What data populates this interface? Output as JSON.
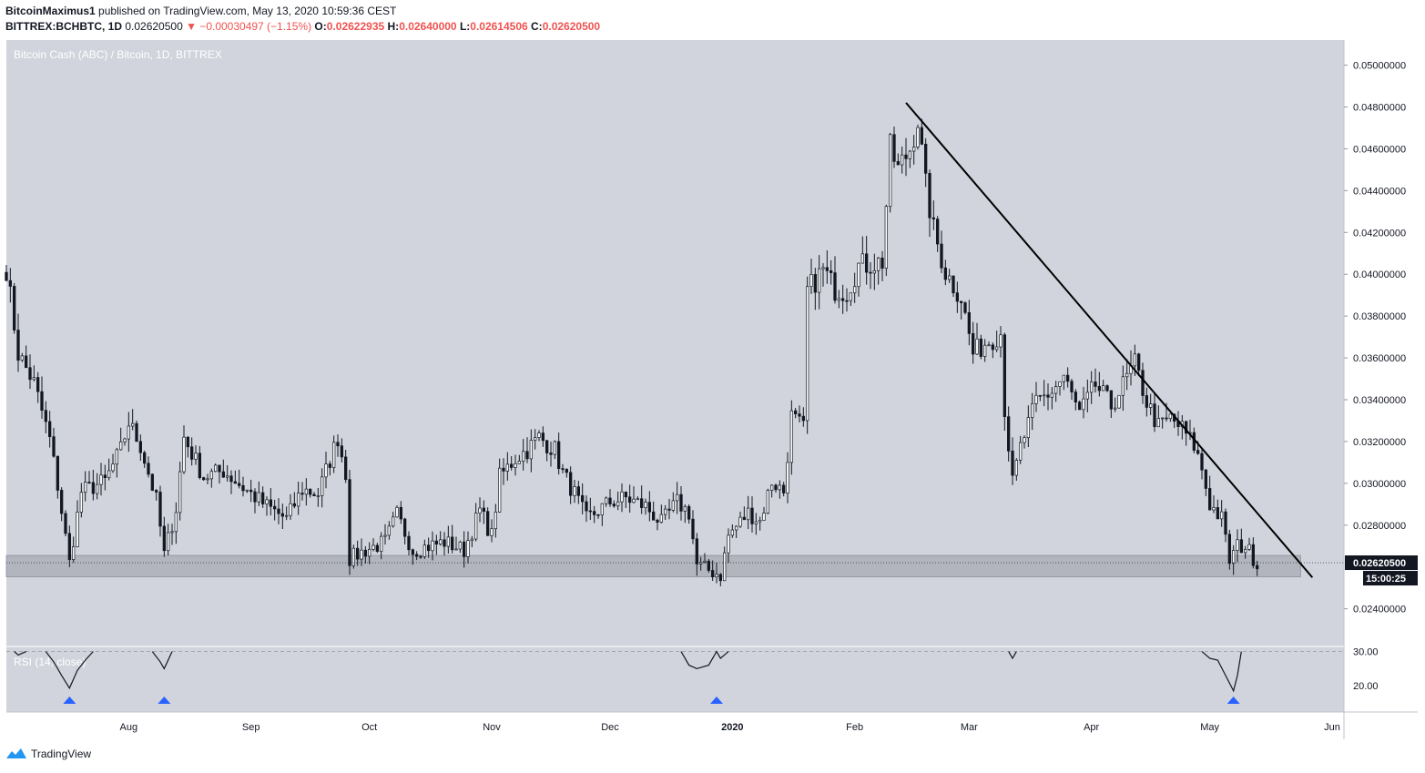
{
  "header": {
    "author": "BitcoinMaximus1",
    "published": "published on TradingView.com, May 13, 2020 10:59:36 CEST",
    "symbol": "BITTREX:BCHBTC, 1D",
    "last": "0.02620500",
    "change": "▼ −0.00030497 (−1.15%)",
    "o_label": "O:",
    "o": "0.02622935",
    "h_label": "H:",
    "h": "0.02640000",
    "l_label": "L:",
    "l": "0.02614506",
    "c_label": "C:",
    "c": "0.02620500"
  },
  "footer": {
    "brand": "TradingView"
  },
  "colors": {
    "background": "#d1d4dc",
    "text": "#131722",
    "down": "#ef5350",
    "marker": "#2962ff",
    "zone": "#b2b5be"
  },
  "chart_data": [
    {
      "type": "candlestick",
      "title": "Bitcoin Cash (ABC) / Bitcoin, 1D, BITTREX",
      "x_tick_labels": [
        "Aug",
        "Sep",
        "Oct",
        "Nov",
        "Dec",
        "2020",
        "Feb",
        "Mar",
        "Apr",
        "May",
        "Jun"
      ],
      "x_tick_dates": [
        "2019-08-01",
        "2019-09-01",
        "2019-10-01",
        "2019-11-01",
        "2019-12-01",
        "2020-01-01",
        "2020-02-01",
        "2020-03-01",
        "2020-04-01",
        "2020-05-01",
        "2020-06-01"
      ],
      "y_tick_labels": [
        "0.02400000",
        "0.02800000",
        "0.03000000",
        "0.03200000",
        "0.03400000",
        "0.03600000",
        "0.03800000",
        "0.04000000",
        "0.04200000",
        "0.04400000",
        "0.04600000",
        "0.04800000",
        "0.05000000"
      ],
      "y_range": [
        0.0222,
        0.0512
      ],
      "x_range": [
        "2019-07-01",
        "2020-06-04"
      ],
      "last_price_label": "0.02620500",
      "countdown_label": "15:00:25",
      "support_zone": {
        "from": "2019-07-01",
        "to": "2020-05-24",
        "low": 0.02553,
        "high": 0.02655
      },
      "trendline": [
        {
          "date": "2020-02-14",
          "price": 0.0482
        },
        {
          "date": "2020-05-27",
          "price": 0.0255
        }
      ],
      "anchors": [
        {
          "date": "2019-07-01",
          "price": 0.0403
        },
        {
          "date": "2019-07-04",
          "price": 0.0362
        },
        {
          "date": "2019-07-08",
          "price": 0.0348
        },
        {
          "date": "2019-07-12",
          "price": 0.0321
        },
        {
          "date": "2019-07-14",
          "price": 0.0299
        },
        {
          "date": "2019-07-17",
          "price": 0.0262
        },
        {
          "date": "2019-07-20",
          "price": 0.0296
        },
        {
          "date": "2019-07-26",
          "price": 0.0301
        },
        {
          "date": "2019-07-30",
          "price": 0.0316
        },
        {
          "date": "2019-08-01",
          "price": 0.0329
        },
        {
          "date": "2019-08-04",
          "price": 0.0318
        },
        {
          "date": "2019-08-08",
          "price": 0.0292
        },
        {
          "date": "2019-08-10",
          "price": 0.0266
        },
        {
          "date": "2019-08-13",
          "price": 0.0288
        },
        {
          "date": "2019-08-15",
          "price": 0.0322
        },
        {
          "date": "2019-08-20",
          "price": 0.0303
        },
        {
          "date": "2019-08-25",
          "price": 0.0306
        },
        {
          "date": "2019-08-30",
          "price": 0.0298
        },
        {
          "date": "2019-09-05",
          "price": 0.0289
        },
        {
          "date": "2019-09-10",
          "price": 0.0283
        },
        {
          "date": "2019-09-14",
          "price": 0.0297
        },
        {
          "date": "2019-09-18",
          "price": 0.0295
        },
        {
          "date": "2019-09-23",
          "price": 0.0322
        },
        {
          "date": "2019-09-25",
          "price": 0.0305
        },
        {
          "date": "2019-09-26",
          "price": 0.0264
        },
        {
          "date": "2019-09-30",
          "price": 0.0268
        },
        {
          "date": "2019-10-05",
          "price": 0.0272
        },
        {
          "date": "2019-10-08",
          "price": 0.0285
        },
        {
          "date": "2019-10-12",
          "price": 0.0268
        },
        {
          "date": "2019-10-20",
          "price": 0.0272
        },
        {
          "date": "2019-10-25",
          "price": 0.0268
        },
        {
          "date": "2019-10-29",
          "price": 0.0287
        },
        {
          "date": "2019-11-01",
          "price": 0.0275
        },
        {
          "date": "2019-11-03",
          "price": 0.0303
        },
        {
          "date": "2019-11-07",
          "price": 0.0312
        },
        {
          "date": "2019-11-10",
          "price": 0.0316
        },
        {
          "date": "2019-11-13",
          "price": 0.0322
        },
        {
          "date": "2019-11-17",
          "price": 0.0316
        },
        {
          "date": "2019-11-19",
          "price": 0.0305
        },
        {
          "date": "2019-11-22",
          "price": 0.0295
        },
        {
          "date": "2019-11-25",
          "price": 0.0283
        },
        {
          "date": "2019-12-01",
          "price": 0.0291
        },
        {
          "date": "2019-12-05",
          "price": 0.0293
        },
        {
          "date": "2019-12-10",
          "price": 0.0289
        },
        {
          "date": "2019-12-14",
          "price": 0.0281
        },
        {
          "date": "2019-12-18",
          "price": 0.0291
        },
        {
          "date": "2019-12-21",
          "price": 0.0286
        },
        {
          "date": "2019-12-23",
          "price": 0.0261
        },
        {
          "date": "2019-12-29",
          "price": 0.0256
        },
        {
          "date": "2019-12-31",
          "price": 0.0275
        },
        {
          "date": "2020-01-05",
          "price": 0.0286
        },
        {
          "date": "2020-01-08",
          "price": 0.0282
        },
        {
          "date": "2020-01-11",
          "price": 0.0301
        },
        {
          "date": "2020-01-14",
          "price": 0.0296
        },
        {
          "date": "2020-01-16",
          "price": 0.0332
        },
        {
          "date": "2020-01-19",
          "price": 0.0326
        },
        {
          "date": "2020-01-20",
          "price": 0.0392
        },
        {
          "date": "2020-01-24",
          "price": 0.0402
        },
        {
          "date": "2020-01-27",
          "price": 0.0393
        },
        {
          "date": "2020-01-30",
          "price": 0.0392
        },
        {
          "date": "2020-02-02",
          "price": 0.0404
        },
        {
          "date": "2020-02-05",
          "price": 0.0405
        },
        {
          "date": "2020-02-08",
          "price": 0.0406
        },
        {
          "date": "2020-02-10",
          "price": 0.046
        },
        {
          "date": "2020-02-12",
          "price": 0.045
        },
        {
          "date": "2020-02-15",
          "price": 0.046
        },
        {
          "date": "2020-02-17",
          "price": 0.0474
        },
        {
          "date": "2020-02-19",
          "price": 0.0442
        },
        {
          "date": "2020-02-21",
          "price": 0.0421
        },
        {
          "date": "2020-02-24",
          "price": 0.0401
        },
        {
          "date": "2020-02-28",
          "price": 0.0389
        },
        {
          "date": "2020-03-02",
          "price": 0.0362
        },
        {
          "date": "2020-03-05",
          "price": 0.0367
        },
        {
          "date": "2020-03-09",
          "price": 0.0372
        },
        {
          "date": "2020-03-10",
          "price": 0.0336
        },
        {
          "date": "2020-03-12",
          "price": 0.03
        },
        {
          "date": "2020-03-14",
          "price": 0.0317
        },
        {
          "date": "2020-03-18",
          "price": 0.0339
        },
        {
          "date": "2020-03-22",
          "price": 0.0344
        },
        {
          "date": "2020-03-25",
          "price": 0.0351
        },
        {
          "date": "2020-03-29",
          "price": 0.0333
        },
        {
          "date": "2020-04-02",
          "price": 0.0347
        },
        {
          "date": "2020-04-06",
          "price": 0.0337
        },
        {
          "date": "2020-04-09",
          "price": 0.0347
        },
        {
          "date": "2020-04-12",
          "price": 0.0357
        },
        {
          "date": "2020-04-15",
          "price": 0.0339
        },
        {
          "date": "2020-04-18",
          "price": 0.0327
        },
        {
          "date": "2020-04-21",
          "price": 0.0331
        },
        {
          "date": "2020-04-24",
          "price": 0.0326
        },
        {
          "date": "2020-04-27",
          "price": 0.0318
        },
        {
          "date": "2020-04-29",
          "price": 0.0307
        },
        {
          "date": "2020-05-01",
          "price": 0.029
        },
        {
          "date": "2020-05-04",
          "price": 0.0283
        },
        {
          "date": "2020-05-06",
          "price": 0.0263
        },
        {
          "date": "2020-05-08",
          "price": 0.027
        },
        {
          "date": "2020-05-10",
          "price": 0.027
        },
        {
          "date": "2020-05-13",
          "price": 0.0262
        }
      ]
    },
    {
      "type": "line",
      "title": "RSI (14, close)",
      "y_tick_labels": [
        "20.00",
        "30.00"
      ],
      "y_range": [
        12.3,
        31.5
      ],
      "oversold_level": 30,
      "oversold_markers": [
        "2019-07-17",
        "2019-08-10",
        "2019-12-28",
        "2020-05-07"
      ],
      "segments": [
        [
          {
            "date": "2019-07-03",
            "value": 30.0
          },
          {
            "date": "2019-07-04",
            "value": 29.0
          },
          {
            "date": "2019-07-06",
            "value": 30.0
          }
        ],
        [
          {
            "date": "2019-07-11",
            "value": 30.0
          },
          {
            "date": "2019-07-13",
            "value": 27.0
          },
          {
            "date": "2019-07-15",
            "value": 23.0
          },
          {
            "date": "2019-07-17",
            "value": 19.3
          },
          {
            "date": "2019-07-19",
            "value": 24.5
          },
          {
            "date": "2019-07-21",
            "value": 27.5
          },
          {
            "date": "2019-07-23",
            "value": 30.0
          }
        ],
        [
          {
            "date": "2019-08-07",
            "value": 30.0
          },
          {
            "date": "2019-08-09",
            "value": 27.0
          },
          {
            "date": "2019-08-10",
            "value": 25.0
          },
          {
            "date": "2019-08-12",
            "value": 30.0
          }
        ],
        [
          {
            "date": "2019-12-19",
            "value": 30.0
          },
          {
            "date": "2019-12-21",
            "value": 26.0
          },
          {
            "date": "2019-12-23",
            "value": 25.0
          },
          {
            "date": "2019-12-26",
            "value": 26.0
          },
          {
            "date": "2019-12-28",
            "value": 30.0
          },
          {
            "date": "2019-12-29",
            "value": 28.0
          },
          {
            "date": "2019-12-31",
            "value": 30.0
          }
        ],
        [
          {
            "date": "2020-03-11",
            "value": 30.0
          },
          {
            "date": "2020-03-12",
            "value": 28.0
          },
          {
            "date": "2020-03-13",
            "value": 30.0
          }
        ],
        [
          {
            "date": "2020-04-29",
            "value": 30.0
          },
          {
            "date": "2020-05-01",
            "value": 28.0
          },
          {
            "date": "2020-05-03",
            "value": 27.5
          },
          {
            "date": "2020-05-05",
            "value": 23.0
          },
          {
            "date": "2020-05-07",
            "value": 18.5
          },
          {
            "date": "2020-05-08",
            "value": 23.0
          },
          {
            "date": "2020-05-09",
            "value": 30.0
          }
        ]
      ]
    }
  ]
}
